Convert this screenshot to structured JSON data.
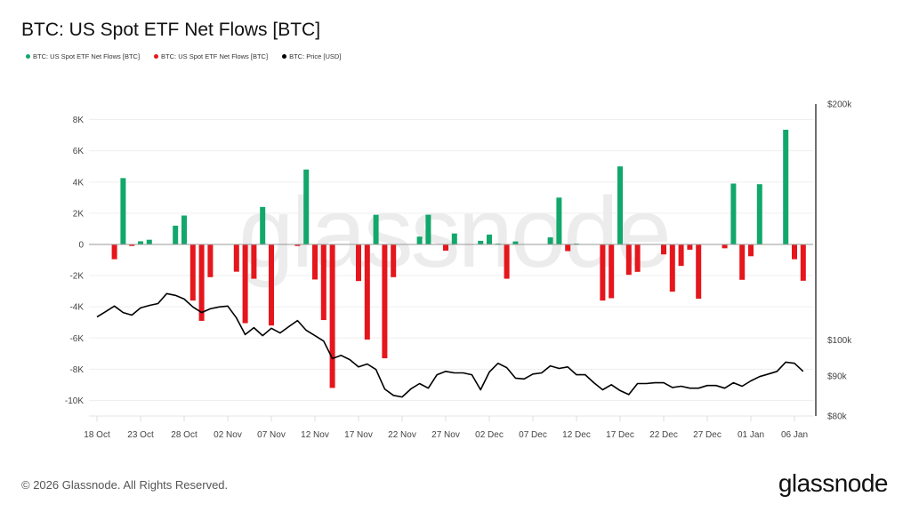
{
  "title": "BTC: US Spot ETF Net Flows [BTC]",
  "legend": [
    {
      "label": "BTC: US Spot ETF Net Flows [BTC]",
      "color": "#12a76b"
    },
    {
      "label": "BTC: US Spot ETF Net Flows [BTC]",
      "color": "#e5161c"
    },
    {
      "label": "BTC: Price [USD]",
      "color": "#000000"
    }
  ],
  "footer": "© 2026 Glassnode. All Rights Reserved.",
  "logo": "glassnode",
  "watermark": "glassnode",
  "chart_data": {
    "type": "bar+line",
    "title": "BTC: US Spot ETF Net Flows [BTC]",
    "left_axis": {
      "ylim": [
        -11000,
        9000
      ],
      "ticks": [
        8000,
        6000,
        4000,
        2000,
        0,
        -2000,
        -4000,
        -6000,
        -8000,
        -10000
      ],
      "tick_labels": [
        "8K",
        "6K",
        "4K",
        "2K",
        "0",
        "-2K",
        "-4K",
        "-6K",
        "-8K",
        "-10K"
      ]
    },
    "right_axis": {
      "scale": "log",
      "ylim": [
        80000,
        200000
      ],
      "ticks": [
        200000,
        100000,
        90000,
        80000
      ],
      "tick_labels": [
        "$200k",
        "$100k",
        "$90k",
        "$80k"
      ]
    },
    "x_axis": {
      "range": [
        "2025-10-18",
        "2026-01-08"
      ],
      "tick_labels": [
        "18 Oct",
        "23 Oct",
        "28 Oct",
        "02 Nov",
        "07 Nov",
        "12 Nov",
        "17 Nov",
        "22 Nov",
        "27 Nov",
        "02 Dec",
        "07 Dec",
        "12 Dec",
        "17 Dec",
        "22 Dec",
        "27 Dec",
        "01 Jan",
        "06 Jan"
      ]
    },
    "grid": true,
    "colors": {
      "inflow": "#12a76b",
      "outflow": "#e5161c",
      "price": "#000000"
    },
    "flows": [
      {
        "date": "2025-10-20",
        "value": -950
      },
      {
        "date": "2025-10-21",
        "value": 4250
      },
      {
        "date": "2025-10-22",
        "value": -100
      },
      {
        "date": "2025-10-23",
        "value": 200
      },
      {
        "date": "2025-10-24",
        "value": 300
      },
      {
        "date": "2025-10-27",
        "value": 1200
      },
      {
        "date": "2025-10-28",
        "value": 1850
      },
      {
        "date": "2025-10-29",
        "value": -3600
      },
      {
        "date": "2025-10-30",
        "value": -4900
      },
      {
        "date": "2025-10-31",
        "value": -2100
      },
      {
        "date": "2025-11-03",
        "value": -1750
      },
      {
        "date": "2025-11-04",
        "value": -5050
      },
      {
        "date": "2025-11-05",
        "value": -2200
      },
      {
        "date": "2025-11-06",
        "value": 2400
      },
      {
        "date": "2025-11-07",
        "value": -5200
      },
      {
        "date": "2025-11-10",
        "value": -100
      },
      {
        "date": "2025-11-11",
        "value": 4800
      },
      {
        "date": "2025-11-12",
        "value": -2250
      },
      {
        "date": "2025-11-13",
        "value": -4850
      },
      {
        "date": "2025-11-14",
        "value": -9200
      },
      {
        "date": "2025-11-17",
        "value": -2350
      },
      {
        "date": "2025-11-18",
        "value": -6100
      },
      {
        "date": "2025-11-19",
        "value": 1900
      },
      {
        "date": "2025-11-20",
        "value": -7300
      },
      {
        "date": "2025-11-21",
        "value": -2100
      },
      {
        "date": "2025-11-24",
        "value": 500
      },
      {
        "date": "2025-11-25",
        "value": 1900
      },
      {
        "date": "2025-11-27",
        "value": -400
      },
      {
        "date": "2025-11-28",
        "value": 700
      },
      {
        "date": "2025-12-01",
        "value": 230
      },
      {
        "date": "2025-12-02",
        "value": 630
      },
      {
        "date": "2025-12-03",
        "value": 50
      },
      {
        "date": "2025-12-04",
        "value": -2200
      },
      {
        "date": "2025-12-05",
        "value": 190
      },
      {
        "date": "2025-12-09",
        "value": 450
      },
      {
        "date": "2025-12-10",
        "value": 3000
      },
      {
        "date": "2025-12-11",
        "value": -430
      },
      {
        "date": "2025-12-12",
        "value": 50
      },
      {
        "date": "2025-12-15",
        "value": -3600
      },
      {
        "date": "2025-12-16",
        "value": -3450
      },
      {
        "date": "2025-12-17",
        "value": 5000
      },
      {
        "date": "2025-12-18",
        "value": -1950
      },
      {
        "date": "2025-12-19",
        "value": -1760
      },
      {
        "date": "2025-12-22",
        "value": -640
      },
      {
        "date": "2025-12-23",
        "value": -3030
      },
      {
        "date": "2025-12-24",
        "value": -1380
      },
      {
        "date": "2025-12-25",
        "value": -340
      },
      {
        "date": "2025-12-26",
        "value": -3480
      },
      {
        "date": "2025-12-29",
        "value": -250
      },
      {
        "date": "2025-12-30",
        "value": 3900
      },
      {
        "date": "2025-12-31",
        "value": -2270
      },
      {
        "date": "2026-01-01",
        "value": -760
      },
      {
        "date": "2026-01-02",
        "value": 3860
      },
      {
        "date": "2026-01-05",
        "value": 7350
      },
      {
        "date": "2026-01-06",
        "value": -950
      },
      {
        "date": "2026-01-07",
        "value": -2330
      }
    ],
    "price": [
      107000,
      108700,
      110500,
      108400,
      107600,
      109900,
      110700,
      111300,
      114600,
      114000,
      112800,
      110200,
      108400,
      109600,
      110200,
      110500,
      106700,
      101600,
      103700,
      101300,
      103500,
      102100,
      104000,
      105900,
      102900,
      101300,
      99700,
      94700,
      95600,
      94400,
      92400,
      93200,
      91700,
      86600,
      85000,
      84600,
      86600,
      88000,
      86800,
      90300,
      91200,
      90800,
      90800,
      90300,
      86400,
      91000,
      93400,
      92200,
      89400,
      89200,
      90500,
      90800,
      92700,
      92000,
      92400,
      90300,
      90300,
      88200,
      86400,
      87700,
      86200,
      85200,
      88000,
      88000,
      88200,
      88200,
      87000,
      87300,
      86800,
      86800,
      87500,
      87500,
      86800,
      88200,
      87300,
      88700,
      89800,
      90500,
      91200,
      93700,
      93400,
      91200
    ]
  }
}
